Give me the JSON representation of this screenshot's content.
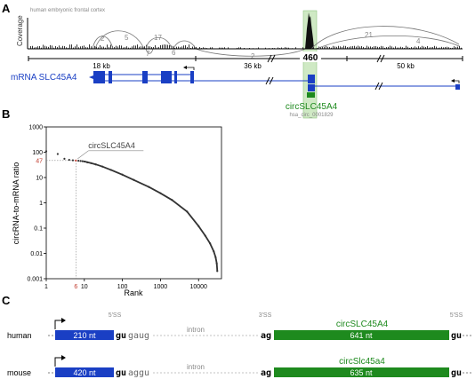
{
  "panels": {
    "a": "A",
    "b": "B",
    "c": "C"
  },
  "panel_a": {
    "tissue": "human embryonic frontal cortex",
    "ylabel": "Coverage",
    "junction_counts": [
      "2",
      "5",
      "17",
      "7",
      "6",
      "2",
      "21",
      "4"
    ],
    "peak_count": "460",
    "scale_labels": [
      "18 kb",
      "36 kb",
      "50 kb"
    ],
    "mrna_label": "mRNA SLC45A4",
    "circ_label": "circSLC45A4",
    "circ_id": "hsa_circ_0001829",
    "colors": {
      "mrna": "#1a3fc4",
      "circ": "#1e8a1e",
      "highlight": "#cfe9c4"
    }
  },
  "chart_data": {
    "type": "scatter",
    "title": "",
    "xlabel": "Rank",
    "ylabel": "circRNA-to-mRNA ratio",
    "xscale": "log",
    "yscale": "log",
    "xlim": [
      1,
      40000
    ],
    "ylim": [
      0.001,
      1000
    ],
    "xticks": [
      "1",
      "10",
      "100",
      "1000",
      "10000"
    ],
    "yticks": [
      "1000",
      "100",
      "10",
      "1",
      "0.1",
      "0.01",
      "0.001"
    ],
    "highlight": {
      "label": "circSLC45A4",
      "rank": 6,
      "rank_label": "6",
      "ratio": 47,
      "ratio_label": "47",
      "color": "#c0392b"
    },
    "series": [
      {
        "x": [
          1,
          2,
          3,
          4,
          5,
          6,
          7,
          8,
          9,
          10,
          12,
          15,
          20,
          30,
          50,
          100,
          200,
          500,
          1000,
          2000,
          5000,
          10000,
          15000,
          20000,
          25000,
          28000,
          30000,
          31000
        ],
        "y": [
          110,
          85,
          55,
          50,
          48,
          47,
          46,
          45,
          44,
          43,
          40,
          37,
          33,
          27,
          20,
          13,
          8,
          4.2,
          2.4,
          1.3,
          0.45,
          0.12,
          0.05,
          0.025,
          0.012,
          0.007,
          0.004,
          0.002
        ]
      }
    ]
  },
  "panel_c": {
    "splice5": "5'SS",
    "splice3": "3'SS",
    "splice5b": "5'SS",
    "intron": "intron",
    "rows": [
      {
        "species": "human",
        "exon1": "210 nt",
        "gu": "gu",
        "seq": "gaug",
        "ag": "ag",
        "circ_name": "circSLC45A4",
        "circ_len": "641 nt",
        "gu_end": "gu"
      },
      {
        "species": "mouse",
        "exon1": "420 nt",
        "gu": "gu",
        "seq": "aggu",
        "ag": "ag",
        "circ_name": "circSlc45a4",
        "circ_len": "635 nt",
        "gu_end": "gu"
      }
    ]
  }
}
